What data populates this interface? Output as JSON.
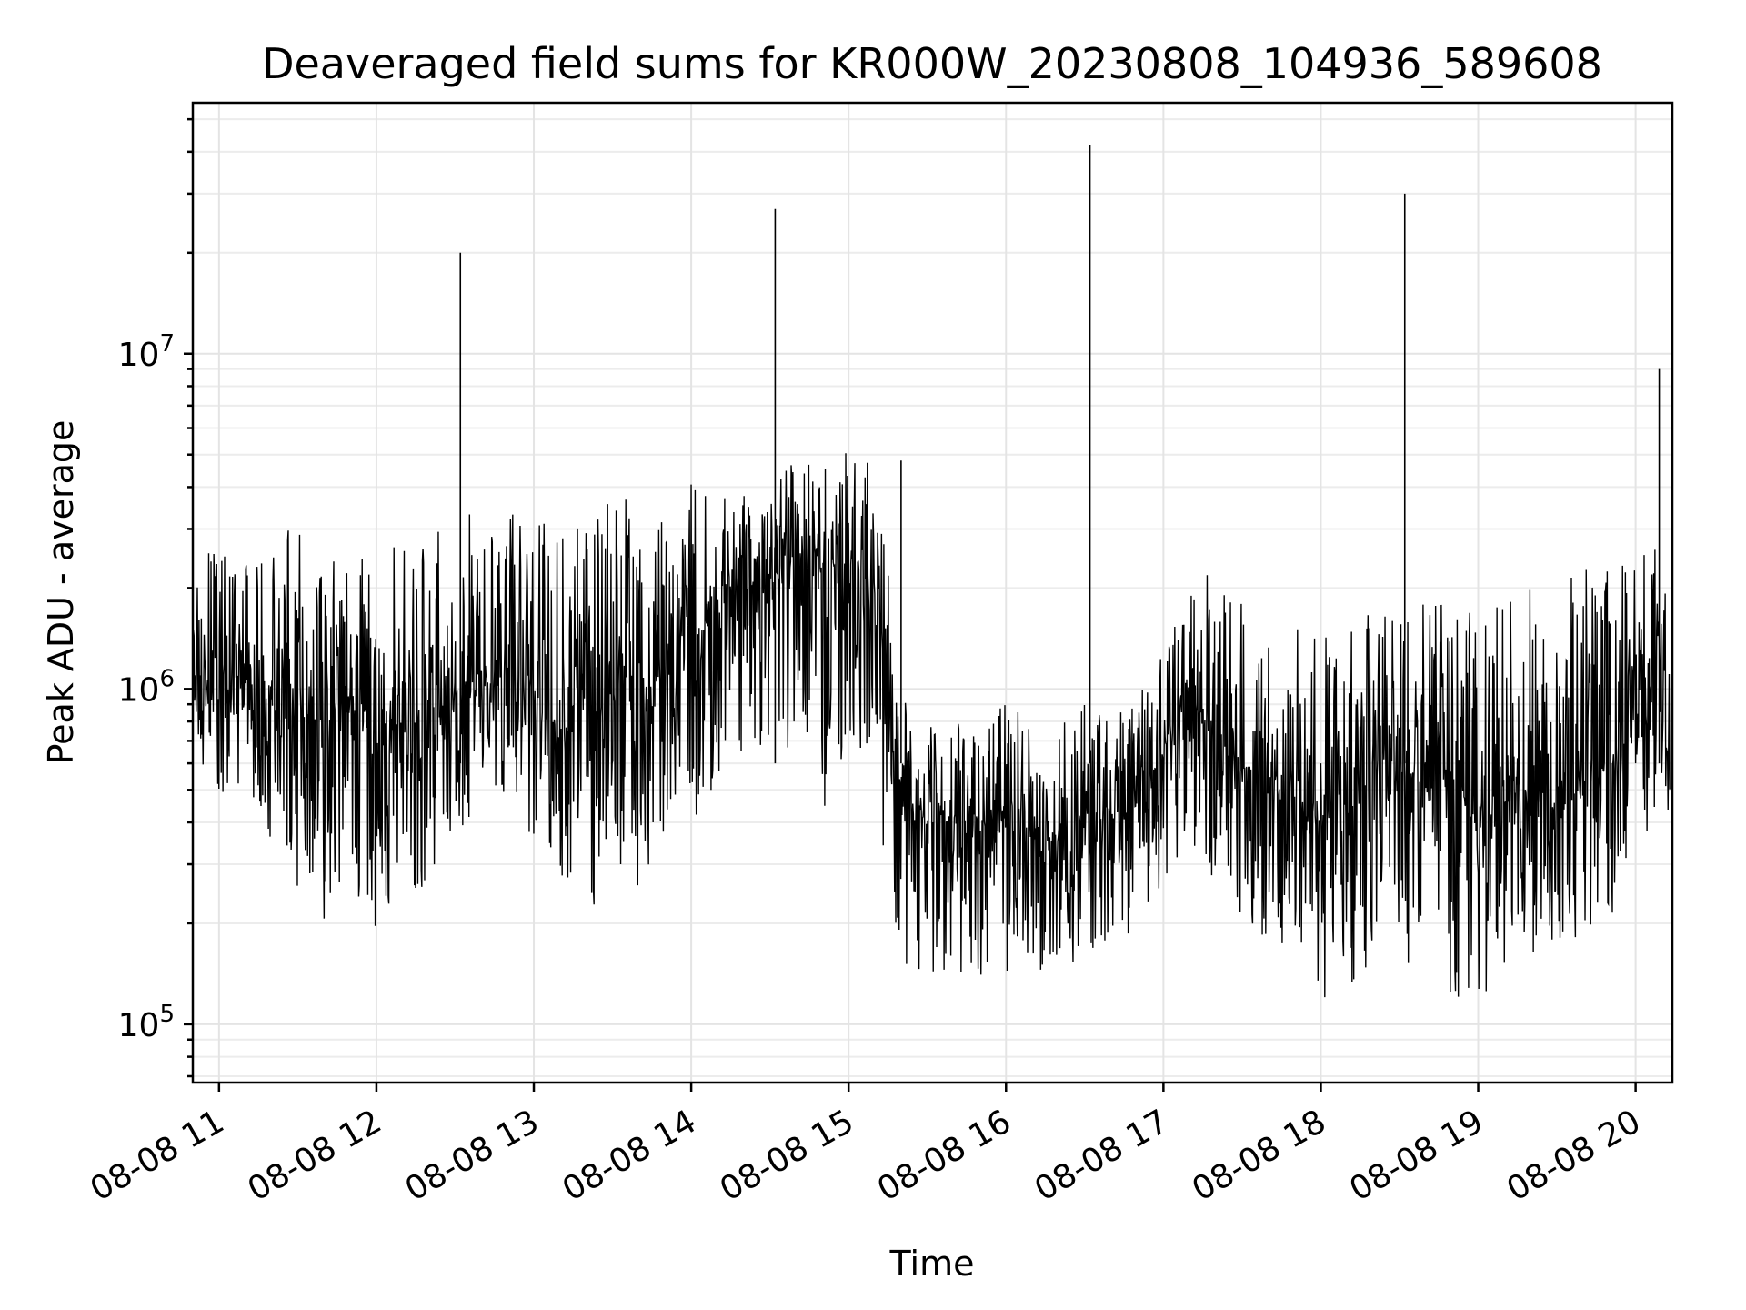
{
  "chart_data": {
    "type": "line",
    "title": "Deaveraged field sums for KR000W_20230808_104936_589608",
    "xlabel": "Time",
    "ylabel": "Peak ADU - average",
    "x_tick_labels": [
      "08-08 11",
      "08-08 12",
      "08-08 13",
      "08-08 14",
      "08-08 15",
      "08-08 16",
      "08-08 17",
      "08-08 18",
      "08-08 19",
      "08-08 20"
    ],
    "x_tick_values": [
      "2023-08-08 11:00",
      "2023-08-08 12:00",
      "2023-08-08 13:00",
      "2023-08-08 14:00",
      "2023-08-08 15:00",
      "2023-08-08 16:00",
      "2023-08-08 17:00",
      "2023-08-08 18:00",
      "2023-08-08 19:00",
      "2023-08-08 20:00"
    ],
    "y_tick_labels": [
      {
        "base": "10",
        "exp": "5"
      },
      {
        "base": "10",
        "exp": "6"
      },
      {
        "base": "10",
        "exp": "7"
      }
    ],
    "y_tick_values": [
      100000,
      1000000,
      10000000
    ],
    "yscale": "log",
    "xlim": [
      "2023-08-08 10:50",
      "2023-08-08 20:14"
    ],
    "ylim": [
      67000,
      56000000
    ],
    "grid": true,
    "line_color": "#000000",
    "grid_color": "#e4e4e4",
    "series": [
      {
        "x": [
          "2023-08-08 10:50",
          "2023-08-08 11:00",
          "2023-08-08 11:10",
          "2023-08-08 11:20",
          "2023-08-08 11:30",
          "2023-08-08 11:40",
          "2023-08-08 11:50",
          "2023-08-08 12:00",
          "2023-08-08 12:10",
          "2023-08-08 12:20",
          "2023-08-08 12:30",
          "2023-08-08 12:40",
          "2023-08-08 12:50",
          "2023-08-08 13:00",
          "2023-08-08 13:10",
          "2023-08-08 13:20",
          "2023-08-08 13:30",
          "2023-08-08 13:40",
          "2023-08-08 13:50",
          "2023-08-08 14:00",
          "2023-08-08 14:10",
          "2023-08-08 14:20",
          "2023-08-08 14:30",
          "2023-08-08 14:40",
          "2023-08-08 14:50",
          "2023-08-08 15:00",
          "2023-08-08 15:10",
          "2023-08-08 15:20",
          "2023-08-08 15:30",
          "2023-08-08 15:40",
          "2023-08-08 15:50",
          "2023-08-08 16:00",
          "2023-08-08 16:10",
          "2023-08-08 16:20",
          "2023-08-08 16:30",
          "2023-08-08 16:40",
          "2023-08-08 16:50",
          "2023-08-08 17:00",
          "2023-08-08 17:10",
          "2023-08-08 17:20",
          "2023-08-08 17:30",
          "2023-08-08 17:40",
          "2023-08-08 17:50",
          "2023-08-08 18:00",
          "2023-08-08 18:10",
          "2023-08-08 18:20",
          "2023-08-08 18:30",
          "2023-08-08 18:40",
          "2023-08-08 18:50",
          "2023-08-08 19:00",
          "2023-08-08 19:10",
          "2023-08-08 19:20",
          "2023-08-08 19:30",
          "2023-08-08 19:40",
          "2023-08-08 19:50",
          "2023-08-08 20:00",
          "2023-08-08 20:10"
        ],
        "y": [
          1000000,
          1000000,
          1000000,
          900000,
          800000,
          800000,
          900000,
          700000,
          800000,
          800000,
          1000000,
          1000000,
          1100000,
          1000000,
          700000,
          900000,
          1000000,
          900000,
          1200000,
          1400000,
          1700000,
          2000000,
          2200000,
          2400000,
          2300000,
          2500000,
          2000000,
          500000,
          400000,
          400000,
          400000,
          400000,
          400000,
          350000,
          400000,
          400000,
          450000,
          650000,
          900000,
          700000,
          600000,
          550000,
          500000,
          400000,
          450000,
          600000,
          600000,
          500000,
          550000,
          400000,
          450000,
          500000,
          450000,
          500000,
          600000,
          900000,
          1100000
        ],
        "low": [
          600000,
          450000,
          500000,
          350000,
          250000,
          200000,
          250000,
          170000,
          250000,
          250000,
          350000,
          400000,
          450000,
          350000,
          250000,
          200000,
          300000,
          250000,
          350000,
          400000,
          500000,
          600000,
          600000,
          500000,
          350000,
          500000,
          500000,
          150000,
          140000,
          140000,
          140000,
          140000,
          140000,
          140000,
          140000,
          150000,
          200000,
          250000,
          300000,
          250000,
          200000,
          180000,
          150000,
          120000,
          110000,
          150000,
          150000,
          130000,
          110000,
          110000,
          150000,
          160000,
          180000,
          180000,
          200000,
          350000,
          400000
        ],
        "high": [
          2200000,
          2800000,
          2500000,
          3000000,
          3200000,
          2500000,
          2500000,
          2500000,
          3500000,
          3000000,
          3200000,
          3500000,
          3800000,
          3600000,
          2800000,
          3500000,
          4000000,
          3800000,
          4200000,
          4500000,
          4200000,
          3800000,
          4400000,
          4800000,
          4600000,
          5200000,
          5000000,
          1000000,
          800000,
          800000,
          850000,
          900000,
          850000,
          800000,
          900000,
          850000,
          900000,
          1500000,
          2800000,
          2000000,
          1800000,
          1500000,
          1700000,
          1400000,
          1600000,
          1800000,
          1700000,
          1800000,
          1900000,
          1700000,
          1900000,
          2000000,
          2200000,
          2400000,
          2300000,
          2400000,
          2800000
        ]
      }
    ],
    "spikes": [
      {
        "x": "2023-08-08 12:32",
        "y": 20000000
      },
      {
        "x": "2023-08-08 14:32",
        "y": 27000000
      },
      {
        "x": "2023-08-08 15:20",
        "y": 4800000
      },
      {
        "x": "2023-08-08 16:32",
        "y": 42000000
      },
      {
        "x": "2023-08-08 18:32",
        "y": 30000000
      },
      {
        "x": "2023-08-08 20:09",
        "y": 9000000
      }
    ]
  }
}
